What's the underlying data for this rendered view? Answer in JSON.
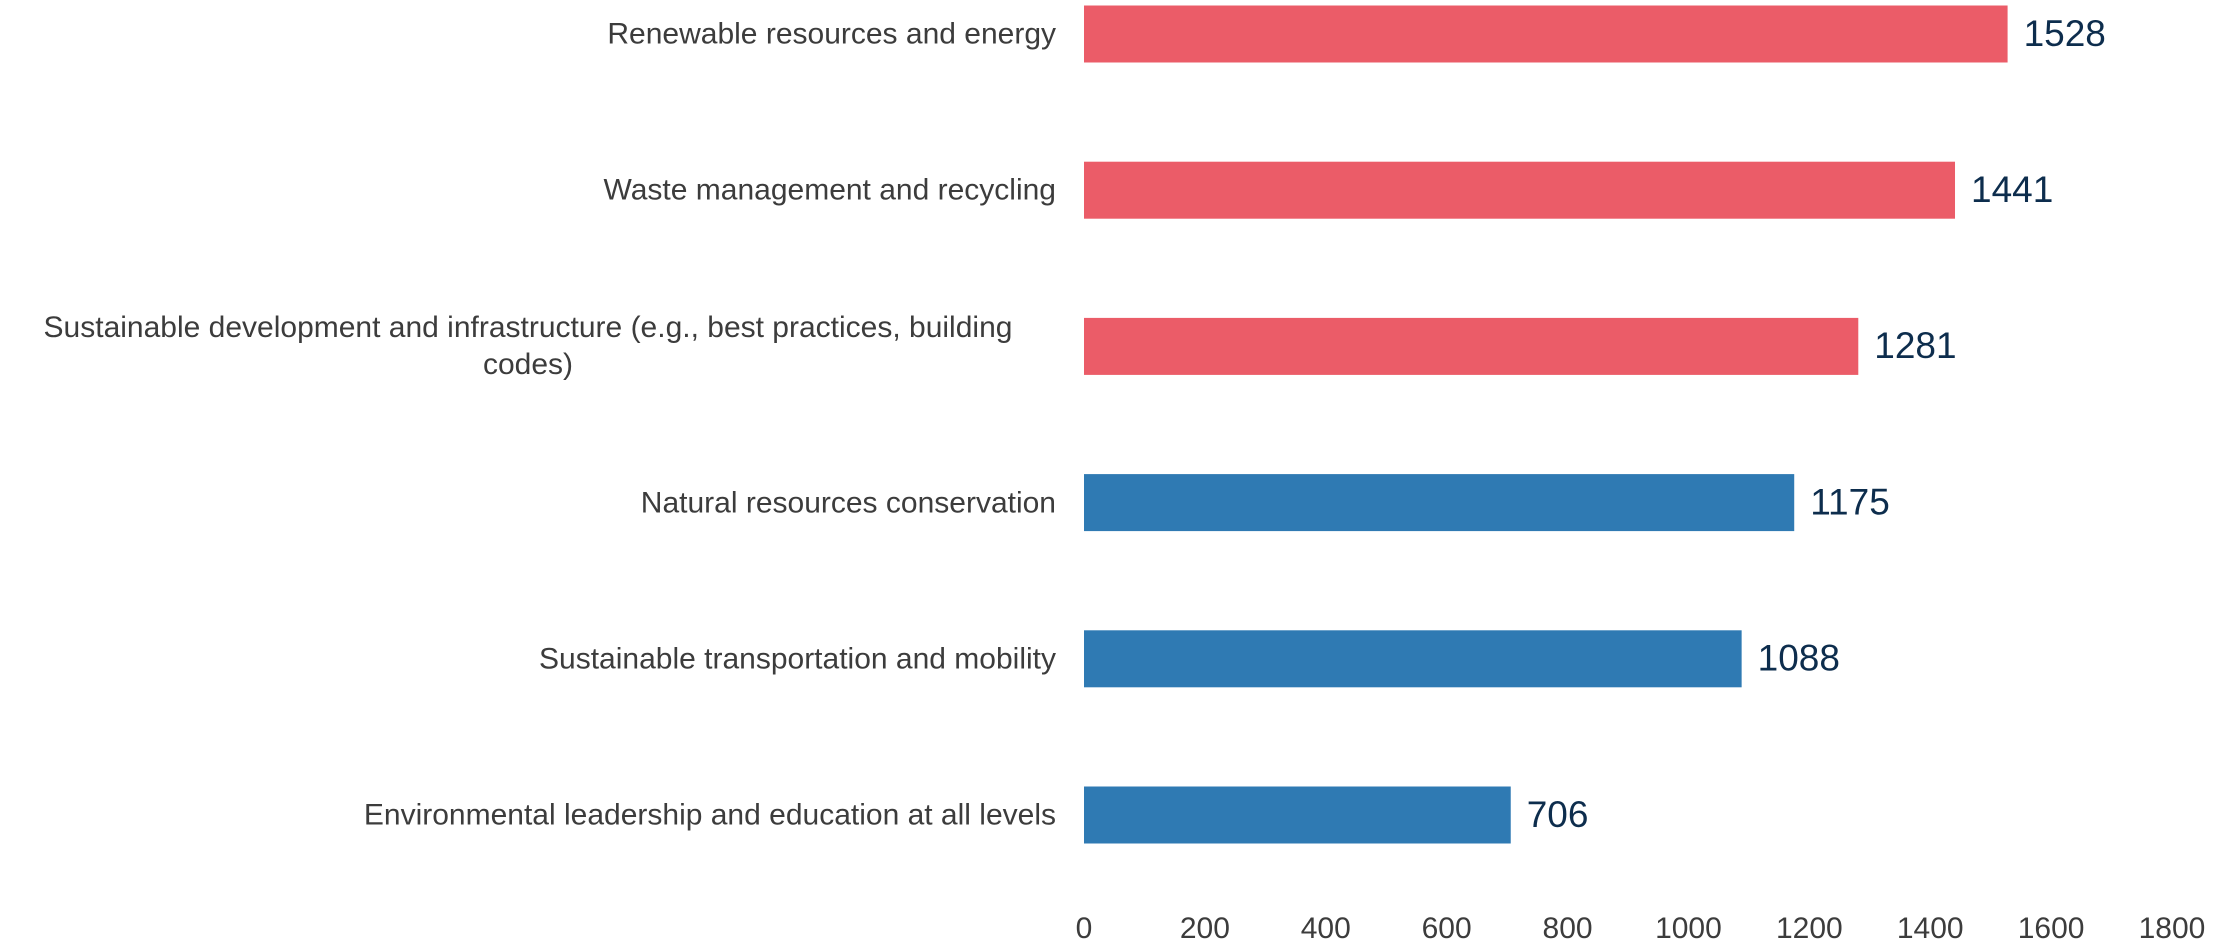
{
  "chart_data": {
    "type": "bar",
    "orientation": "horizontal",
    "categories": [
      "Renewable resources and energy",
      "Waste management and recycling",
      "Sustainable development and infrastructure (e.g., best practices, building codes)",
      "Natural resources conservation",
      "Sustainable transportation and mobility",
      "Environmental leadership and education at all levels"
    ],
    "values": [
      1528,
      1441,
      1281,
      1175,
      1088,
      706
    ],
    "colors": [
      "#eb5c68",
      "#eb5c68",
      "#eb5c68",
      "#2f7ab3",
      "#2f7ab3",
      "#2f7ab3"
    ],
    "xlim": [
      0,
      1800
    ],
    "xticks": [
      0,
      200,
      400,
      600,
      800,
      1000,
      1200,
      1400,
      1600,
      1800
    ],
    "grid": false
  }
}
